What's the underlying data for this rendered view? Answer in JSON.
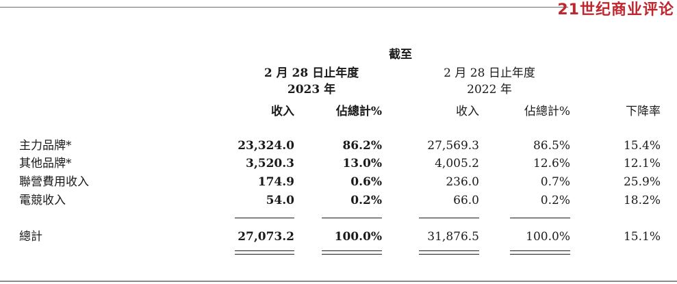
{
  "brand": "21世纪商业评论",
  "header": {
    "as_of": "截至",
    "current_period": "2 月 28 日止年度",
    "current_year": "2023 年",
    "prior_period": "2 月 28 日止年度",
    "prior_year": "2022 年",
    "revenue_2023": "收入",
    "share_2023": "佔總計%",
    "revenue_2022": "收入",
    "share_2022": "佔總計%",
    "decline": "下降率"
  },
  "rows": [
    {
      "label": "主力品牌*",
      "revenue_2023": "23,324.0",
      "share_2023": "86.2%",
      "revenue_2022": "27,569.3",
      "share_2022": "86.5%",
      "decline": "15.4%"
    },
    {
      "label": "其他品牌*",
      "revenue_2023": "3,520.3",
      "share_2023": "13.0%",
      "revenue_2022": "4,005.2",
      "share_2022": "12.6%",
      "decline": "12.1%"
    },
    {
      "label": "聯營費用收入",
      "revenue_2023": "174.9",
      "share_2023": "0.6%",
      "revenue_2022": "236.0",
      "share_2022": "0.7%",
      "decline": "25.9%"
    },
    {
      "label": "電競收入",
      "revenue_2023": "54.0",
      "share_2023": "0.2%",
      "revenue_2022": "66.0",
      "share_2022": "0.2%",
      "decline": "18.2%"
    }
  ],
  "total": {
    "label": "總計",
    "revenue_2023": "27,073.2",
    "share_2023": "100.0%",
    "revenue_2022": "31,876.5",
    "share_2022": "100.0%",
    "decline": "15.1%"
  }
}
